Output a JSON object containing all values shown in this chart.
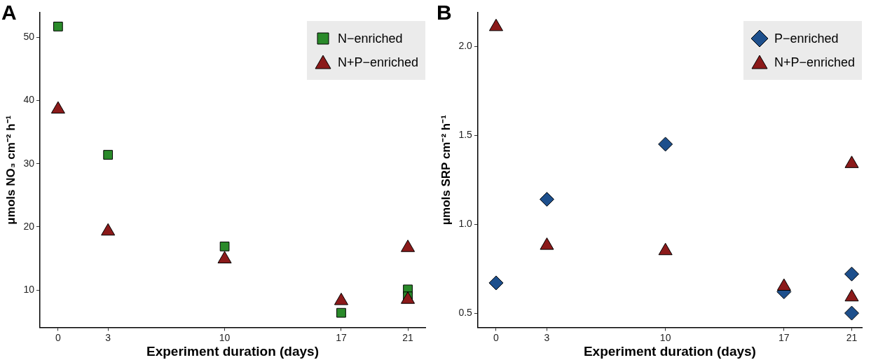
{
  "chart_data": [
    {
      "type": "scatter",
      "title": "A",
      "xlabel": "Experiment duration (days)",
      "ylabel": "μmols NO₃ cm⁻² h⁻¹",
      "xlim": [
        -1.09,
        22.05
      ],
      "xticks": [
        0,
        3,
        10,
        17,
        21
      ],
      "ylim": [
        4.1,
        53.9
      ],
      "yticks": [
        10,
        20,
        30,
        40,
        50
      ],
      "grid": false,
      "legend": "top right",
      "series": [
        {
          "name": "N−enriched",
          "color": "#2a8a2a",
          "marker": "square",
          "x": [
            0,
            3,
            10,
            17,
            21,
            21
          ],
          "values": [
            51.7,
            31.4,
            16.9,
            6.4,
            10.1,
            9.0
          ]
        },
        {
          "name": "N+P−enriched",
          "color": "#8b1a1a",
          "marker": "triangle",
          "x": [
            0,
            3,
            10,
            17,
            21,
            21
          ],
          "values": [
            38.6,
            19.3,
            14.9,
            8.3,
            16.7,
            8.5
          ]
        }
      ]
    },
    {
      "type": "scatter",
      "title": "B",
      "xlabel": "Experiment duration (days)",
      "ylabel": "μmols SRP cm⁻² h⁻¹",
      "xlim": [
        -1.08,
        21.6
      ],
      "xticks": [
        0,
        3,
        10,
        17,
        21
      ],
      "ylim": [
        0.42,
        2.19
      ],
      "yticks": [
        0.5,
        {
          "value": 1,
          "label": "1.0"
        },
        1.5,
        {
          "value": 2,
          "label": "2.0"
        }
      ],
      "grid": false,
      "legend": "top right",
      "series": [
        {
          "name": "P−enriched",
          "color": "#1d4f8c",
          "marker": "diamond",
          "x": [
            0,
            3,
            10,
            17,
            21,
            21
          ],
          "values": [
            0.67,
            1.14,
            1.45,
            0.62,
            0.72,
            0.5
          ]
        },
        {
          "name": "N+P−enriched",
          "color": "#8b1a1a",
          "marker": "triangle",
          "x": [
            0,
            3,
            10,
            17,
            21,
            21
          ],
          "values": [
            2.11,
            0.88,
            0.85,
            0.65,
            1.34,
            0.59
          ]
        }
      ]
    }
  ]
}
